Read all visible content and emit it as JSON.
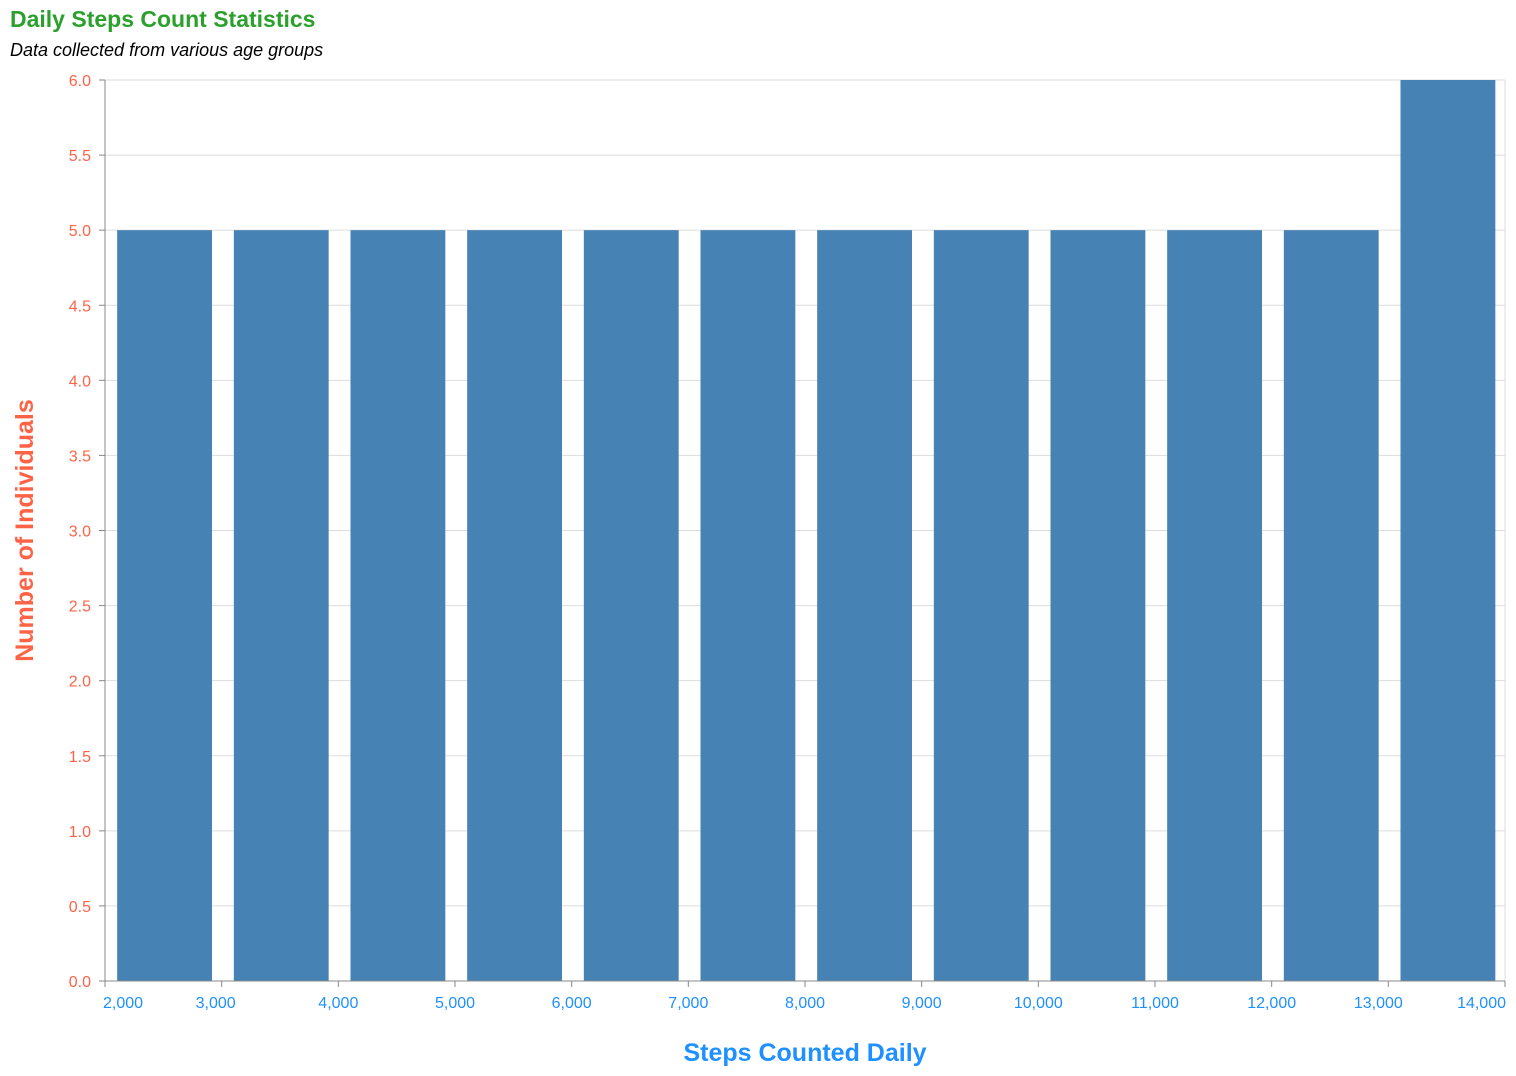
{
  "colors": {
    "title": "#2ca02c",
    "bar": "#4682b4",
    "y_axis": "#ff6347",
    "x_axis": "#1e90ff",
    "grid": "#dddddd",
    "domain": "#888888"
  },
  "chart_data": {
    "type": "bar",
    "title": "Daily Steps Count Statistics",
    "subtitle": "Data collected from various age groups",
    "xlabel": "Steps Counted Daily",
    "ylabel": "Number of Individuals",
    "xlim": [
      2000,
      14000
    ],
    "ylim": [
      0,
      6
    ],
    "grid": true,
    "x_ticks": [
      "2,000",
      "3,000",
      "4,000",
      "5,000",
      "6,000",
      "7,000",
      "8,000",
      "9,000",
      "10,000",
      "11,000",
      "12,000",
      "13,000",
      "14,000"
    ],
    "y_ticks": [
      "0.0",
      "0.5",
      "1.0",
      "1.5",
      "2.0",
      "2.5",
      "3.0",
      "3.5",
      "4.0",
      "4.5",
      "5.0",
      "5.5",
      "6.0"
    ],
    "bins": [
      {
        "x0": 2000,
        "x1": 3000,
        "value": 5
      },
      {
        "x0": 3000,
        "x1": 4000,
        "value": 5
      },
      {
        "x0": 4000,
        "x1": 5000,
        "value": 5
      },
      {
        "x0": 5000,
        "x1": 6000,
        "value": 5
      },
      {
        "x0": 6000,
        "x1": 7000,
        "value": 5
      },
      {
        "x0": 7000,
        "x1": 8000,
        "value": 5
      },
      {
        "x0": 8000,
        "x1": 9000,
        "value": 5
      },
      {
        "x0": 9000,
        "x1": 10000,
        "value": 5
      },
      {
        "x0": 10000,
        "x1": 11000,
        "value": 5
      },
      {
        "x0": 11000,
        "x1": 12000,
        "value": 5
      },
      {
        "x0": 12000,
        "x1": 13000,
        "value": 5
      },
      {
        "x0": 13000,
        "x1": 14000,
        "value": 6
      }
    ]
  }
}
